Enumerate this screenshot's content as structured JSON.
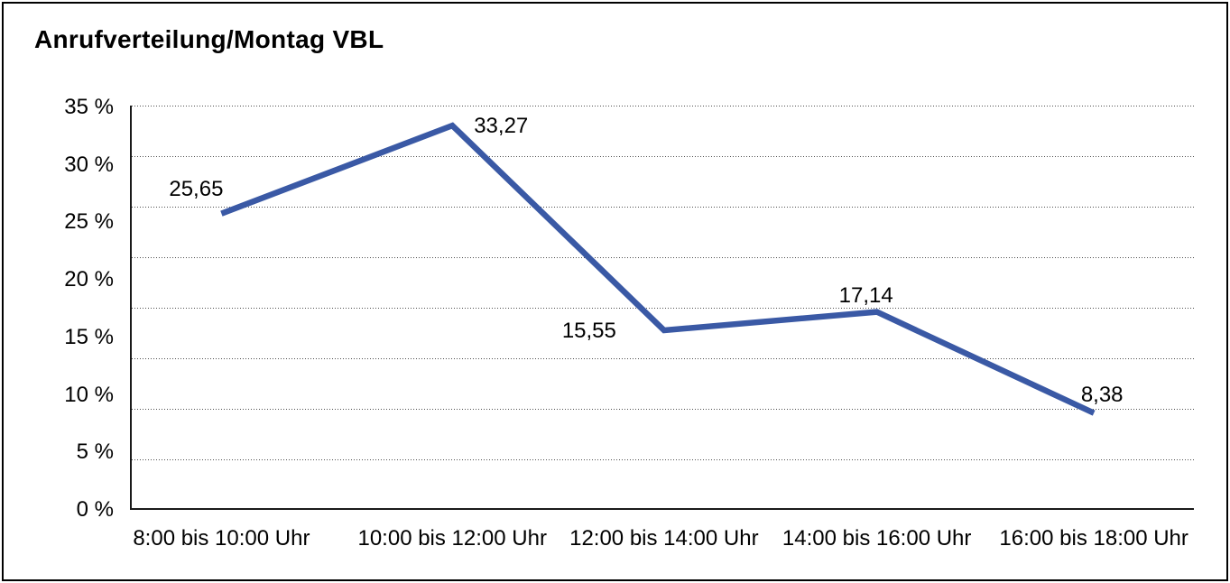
{
  "header": {
    "title": "Anrufverteilung/Montag VBL"
  },
  "colors": {
    "line": "#3A59A5",
    "axis": "#1a1a1a",
    "grid": "#4d4d4d",
    "text": "#000000",
    "background": "#ffffff",
    "border": "#000000"
  },
  "chart_data": {
    "type": "line",
    "title": "Anrufverteilung/Montag VBL",
    "categories": [
      "8:00 bis 10:00 Uhr",
      "10:00 bis 12:00 Uhr",
      "12:00 bis 14:00 Uhr",
      "14:00 bis 16:00 Uhr",
      "16:00 bis 18:00 Uhr"
    ],
    "values": [
      25.65,
      33.27,
      15.55,
      17.14,
      8.38
    ],
    "value_labels": [
      "25,65",
      "33,27",
      "15,55",
      "17,14",
      "8,38"
    ],
    "xlabel": "",
    "ylabel": "",
    "unit": "%",
    "ylim": [
      0,
      35
    ],
    "ytick_values": [
      35,
      30,
      25,
      20,
      15,
      10,
      5,
      0
    ],
    "ytick_labels": [
      "35 %",
      "30 %",
      "25 %",
      "20 %",
      "15 %",
      "10 %",
      "5 %",
      "0 %"
    ],
    "grid": "horizontal-dotted",
    "legend_position": "none",
    "line_color": "#3A59A5"
  }
}
